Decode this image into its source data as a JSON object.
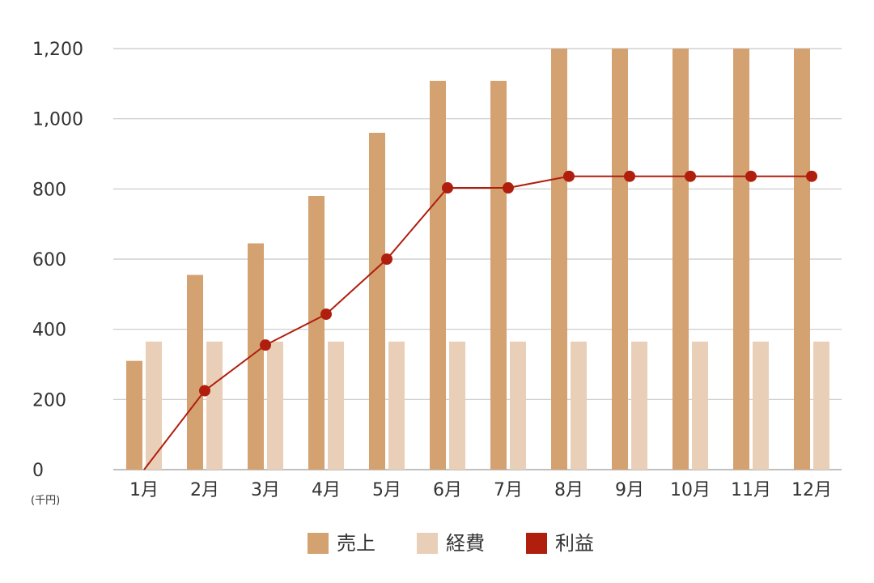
{
  "chart_data": {
    "type": "bar",
    "title": "",
    "xlabel": "",
    "ylabel": "",
    "unit_label": "(千円)",
    "categories": [
      "1月",
      "2月",
      "3月",
      "4月",
      "5月",
      "6月",
      "7月",
      "8月",
      "9月",
      "10月",
      "11月",
      "12月"
    ],
    "ylim": [
      0,
      1200
    ],
    "yticks": [
      0,
      200,
      400,
      600,
      800,
      1000,
      1200
    ],
    "ytick_labels": [
      "0",
      "200",
      "400",
      "600",
      "800",
      "1,000",
      "1,200"
    ],
    "grid": true,
    "legend_position": "bottom-center",
    "series": [
      {
        "name": "売上",
        "kind": "bar",
        "color": "#D4A171",
        "values": [
          310,
          555,
          645,
          780,
          960,
          1108,
          1108,
          1200,
          1200,
          1200,
          1200,
          1200
        ]
      },
      {
        "name": "経費",
        "kind": "bar",
        "color": "#EACFB8",
        "values": [
          365,
          365,
          365,
          365,
          365,
          365,
          365,
          365,
          365,
          365,
          365,
          365
        ]
      },
      {
        "name": "利益",
        "kind": "line",
        "color": "#B01E0E",
        "values": [
          0,
          225,
          355,
          443,
          600,
          803,
          803,
          836,
          836,
          836,
          836,
          836
        ]
      }
    ]
  }
}
